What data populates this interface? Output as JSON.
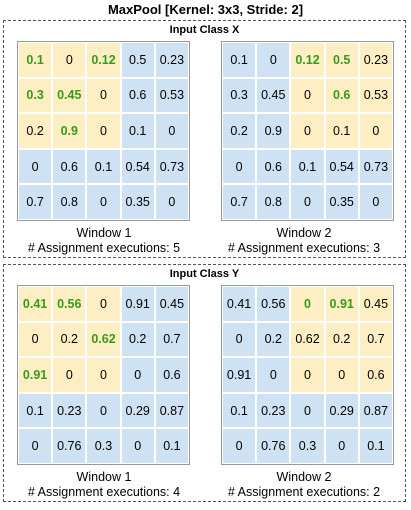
{
  "title": "MaxPool [Kernel: 3x3, Stride: 2]",
  "panels": [
    {
      "title": "Input Class X",
      "grid": [
        [
          "0.1",
          "0",
          "0.12",
          "0.5",
          "0.23"
        ],
        [
          "0.3",
          "0.45",
          "0",
          "0.6",
          "0.53"
        ],
        [
          "0.2",
          "0.9",
          "0",
          "0.1",
          "0"
        ],
        [
          "0",
          "0.6",
          "0.1",
          "0.54",
          "0.73"
        ],
        [
          "0.7",
          "0.8",
          "0",
          "0.35",
          "0"
        ]
      ],
      "windows": [
        {
          "label": "Window 1",
          "caption": "# Assignment executions: 5",
          "start_col": 0,
          "assignments": [
            [
              0,
              0
            ],
            [
              0,
              2
            ],
            [
              1,
              0
            ],
            [
              1,
              1
            ],
            [
              2,
              1
            ]
          ]
        },
        {
          "label": "Window 2",
          "caption": "# Assignment executions: 3",
          "start_col": 2,
          "assignments": [
            [
              0,
              2
            ],
            [
              0,
              3
            ],
            [
              1,
              3
            ]
          ]
        }
      ]
    },
    {
      "title": "Input Class Y",
      "grid": [
        [
          "0.41",
          "0.56",
          "0",
          "0.91",
          "0.45"
        ],
        [
          "0",
          "0.2",
          "0.62",
          "0.2",
          "0.7"
        ],
        [
          "0.91",
          "0",
          "0",
          "0",
          "0.6"
        ],
        [
          "0.1",
          "0.23",
          "0",
          "0.29",
          "0.87"
        ],
        [
          "0",
          "0.76",
          "0.3",
          "0",
          "0.1"
        ]
      ],
      "windows": [
        {
          "label": "Window 1",
          "caption": "# Assignment executions: 4",
          "start_col": 0,
          "assignments": [
            [
              0,
              0
            ],
            [
              0,
              1
            ],
            [
              1,
              2
            ],
            [
              2,
              0
            ]
          ]
        },
        {
          "label": "Window 2",
          "caption": "# Assignment executions: 2",
          "start_col": 2,
          "assignments": [
            [
              0,
              2
            ],
            [
              0,
              3
            ]
          ]
        }
      ]
    }
  ]
}
